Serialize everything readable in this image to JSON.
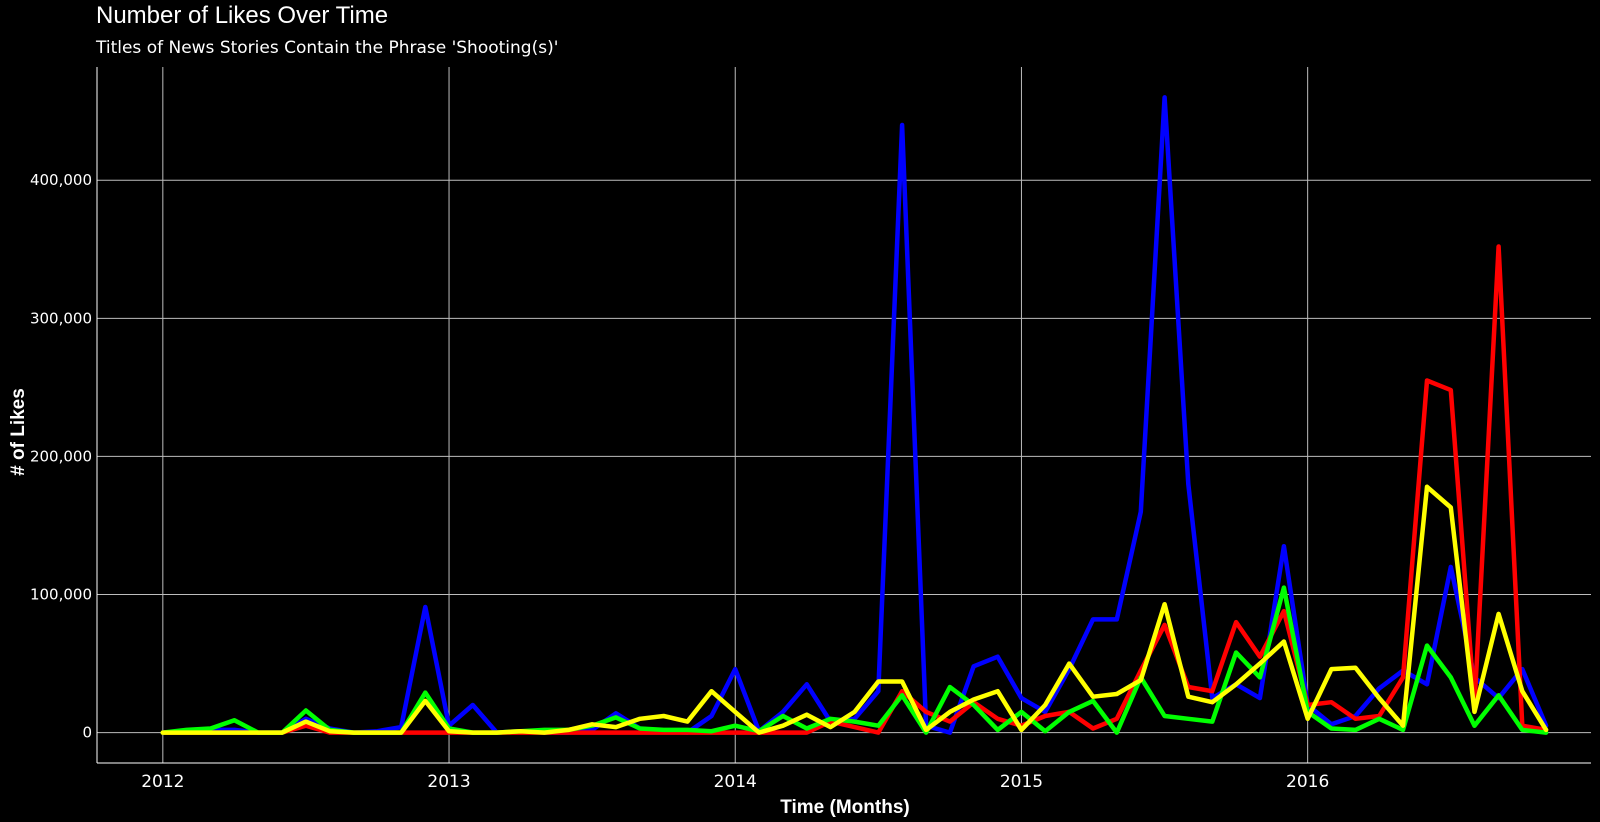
{
  "chart_data": {
    "type": "line",
    "title": "Number of Likes Over Time",
    "subtitle": "Titles of News Stories Contain the Phrase 'Shooting(s)'",
    "xlabel": "Time (Months)",
    "ylabel": "# of Likes",
    "xlim": [
      2011.77,
      2016.99
    ],
    "ylim": [
      -22000,
      482000
    ],
    "x_ticks": [
      {
        "value": 2012,
        "label": "2012"
      },
      {
        "value": 2013,
        "label": "2013"
      },
      {
        "value": 2014,
        "label": "2014"
      },
      {
        "value": 2015,
        "label": "2015"
      },
      {
        "value": 2016,
        "label": "2016"
      }
    ],
    "y_ticks": [
      {
        "value": 0,
        "label": "0"
      },
      {
        "value": 100000,
        "label": "100,000"
      },
      {
        "value": 200000,
        "label": "200,000"
      },
      {
        "value": 300000,
        "label": "300,000"
      },
      {
        "value": 400000,
        "label": "400,000"
      }
    ],
    "grid": true,
    "legend": "none",
    "x": [
      2012.0,
      2012.083,
      2012.167,
      2012.25,
      2012.333,
      2012.417,
      2012.5,
      2012.583,
      2012.667,
      2012.75,
      2012.833,
      2012.917,
      2013.0,
      2013.083,
      2013.167,
      2013.25,
      2013.333,
      2013.417,
      2013.5,
      2013.583,
      2013.667,
      2013.75,
      2013.833,
      2013.917,
      2014.0,
      2014.083,
      2014.167,
      2014.25,
      2014.333,
      2014.417,
      2014.5,
      2014.583,
      2014.667,
      2014.75,
      2014.833,
      2014.917,
      2015.0,
      2015.083,
      2015.167,
      2015.25,
      2015.333,
      2015.417,
      2015.5,
      2015.583,
      2015.667,
      2015.75,
      2015.833,
      2015.917,
      2016.0,
      2016.083,
      2016.167,
      2016.25,
      2016.333,
      2016.417,
      2016.5,
      2016.583,
      2016.667,
      2016.75,
      2016.833
    ],
    "series": [
      {
        "name": "blue",
        "color": "#0000ff",
        "values": [
          0,
          1000,
          2000,
          2000,
          0,
          0,
          10000,
          3000,
          0,
          1000,
          4000,
          91000,
          5000,
          20000,
          0,
          1000,
          0,
          0,
          2000,
          14000,
          3000,
          1000,
          0,
          12000,
          46000,
          1000,
          15000,
          35000,
          8000,
          10000,
          30000,
          440000,
          5000,
          0,
          48000,
          55000,
          25000,
          15000,
          46000,
          82000,
          82000,
          160000,
          460000,
          180000,
          25000,
          35000,
          25000,
          135000,
          20000,
          6000,
          12000,
          32000,
          45000,
          35000,
          120000,
          40000,
          25000,
          46000,
          5000
        ]
      },
      {
        "name": "red",
        "color": "#ff0000",
        "values": [
          0,
          0,
          0,
          0,
          0,
          0,
          5000,
          0,
          0,
          0,
          0,
          0,
          0,
          0,
          0,
          0,
          0,
          0,
          0,
          0,
          0,
          0,
          0,
          0,
          0,
          0,
          0,
          0,
          8000,
          4000,
          0,
          30000,
          15000,
          8000,
          22000,
          10000,
          5000,
          12000,
          15000,
          3000,
          10000,
          45000,
          78000,
          33000,
          30000,
          80000,
          55000,
          88000,
          20000,
          22000,
          10000,
          12000,
          40000,
          255000,
          248000,
          20000,
          352000,
          5000,
          2000
        ]
      },
      {
        "name": "green",
        "color": "#00ff00",
        "values": [
          0,
          2000,
          3000,
          9000,
          0,
          0,
          16000,
          2000,
          0,
          0,
          0,
          29000,
          3000,
          0,
          0,
          1000,
          2000,
          2000,
          5000,
          11000,
          3000,
          2000,
          2000,
          1000,
          5000,
          1000,
          12000,
          3000,
          10000,
          8000,
          5000,
          27000,
          0,
          33000,
          20000,
          2000,
          15000,
          1000,
          15000,
          23000,
          0,
          40000,
          12000,
          10000,
          8000,
          58000,
          40000,
          105000,
          15000,
          3000,
          2000,
          10000,
          2000,
          63000,
          40000,
          5000,
          27000,
          2000,
          0
        ]
      },
      {
        "name": "yellow",
        "color": "#ffff00",
        "values": [
          0,
          0,
          0,
          0,
          0,
          0,
          8000,
          1000,
          0,
          0,
          0,
          23000,
          1000,
          0,
          0,
          1000,
          0,
          2000,
          6000,
          4000,
          10000,
          12000,
          8000,
          30000,
          15000,
          0,
          5000,
          13000,
          4000,
          15000,
          37000,
          37000,
          2000,
          15000,
          24000,
          30000,
          2000,
          20000,
          50000,
          26000,
          28000,
          38000,
          93000,
          26000,
          22000,
          35000,
          50000,
          66000,
          10000,
          46000,
          47000,
          25000,
          5000,
          178000,
          163000,
          15000,
          86000,
          30000,
          2000
        ]
      }
    ]
  }
}
